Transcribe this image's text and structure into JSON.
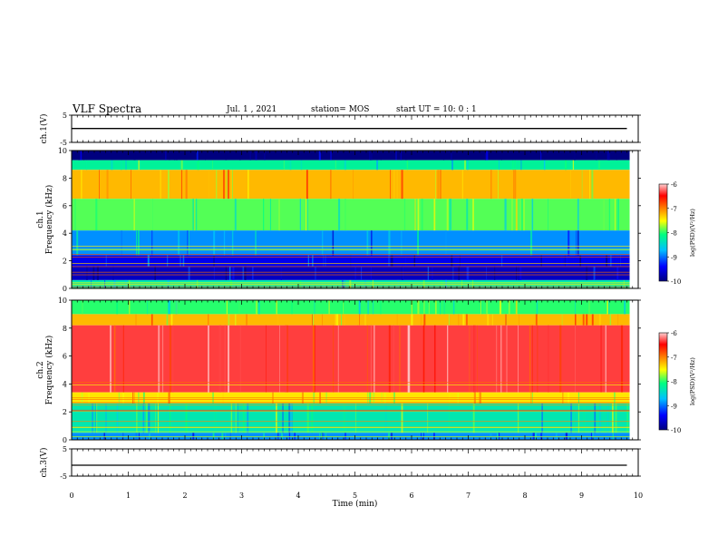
{
  "header": {
    "title": "VLF Spectra",
    "date": "Jul.  1  , 2021",
    "station": "station= MOS",
    "start": "start  UT  =   10: 0  : 1"
  },
  "colors": {
    "ch1_background": "#f0e820",
    "ch2_background": "#ff3030",
    "colormap": [
      "#00007f",
      "#0000ff",
      "#00c0ff",
      "#00ff80",
      "#ffff00",
      "#ff8000",
      "#ff0000",
      "#ffd0d0"
    ]
  },
  "chart_data": [
    {
      "type": "line",
      "ylabel": "ch.1(V)",
      "ylim": [
        -5,
        5
      ],
      "yticks": [
        "5",
        "-5"
      ],
      "series": [
        {
          "x": [
            0,
            9.8
          ],
          "y": [
            0.1,
            0.1
          ]
        }
      ]
    },
    {
      "type": "heatmap",
      "ylabel_top": "ch.1",
      "ylabel": "Frequency (kHz)",
      "ylim": [
        0,
        10
      ],
      "yticks": [
        "0",
        "2",
        "4",
        "6",
        "8",
        "10"
      ],
      "xlim": [
        0,
        10
      ],
      "colorbar": {
        "label": "log(PSD)(V²/Hz)",
        "ticks": [
          "-6",
          "-7",
          "-8",
          "-9",
          "-10"
        ],
        "range": [
          -10,
          -6
        ]
      },
      "bands": [
        {
          "f0": 9.3,
          "f1": 10,
          "level": -10
        },
        {
          "f0": 8.6,
          "f1": 9.3,
          "level": -8.4
        },
        {
          "f0": 6.5,
          "f1": 8.6,
          "level": -7.4
        },
        {
          "f0": 4.2,
          "f1": 6.5,
          "level": -8.1
        },
        {
          "f0": 2.4,
          "f1": 4.2,
          "level": -9.0
        },
        {
          "f0": 1.6,
          "f1": 2.4,
          "level": -9.5
        },
        {
          "f0": 0.6,
          "f1": 1.6,
          "level": -9.7
        },
        {
          "f0": 0,
          "f1": 0.6,
          "level": -8.5
        }
      ]
    },
    {
      "type": "heatmap",
      "ylabel_top": "ch.2",
      "ylabel": "Frequency (kHz)",
      "ylim": [
        0,
        10
      ],
      "yticks": [
        "0",
        "2",
        "4",
        "6",
        "8",
        "10"
      ],
      "xlim": [
        0,
        10
      ],
      "colorbar": {
        "label": "log(PSD)(V²/Hz)",
        "ticks": [
          "-6",
          "-7",
          "-8",
          "-9",
          "-10"
        ],
        "range": [
          -10,
          -6
        ]
      },
      "bands": [
        {
          "f0": 9.0,
          "f1": 10,
          "level": -8.2
        },
        {
          "f0": 8.2,
          "f1": 9.0,
          "level": -7.4
        },
        {
          "f0": 3.4,
          "f1": 8.2,
          "level": -6.4
        },
        {
          "f0": 2.6,
          "f1": 3.4,
          "level": -7.6
        },
        {
          "f0": 0.5,
          "f1": 2.6,
          "level": -8.5
        },
        {
          "f0": 0,
          "f1": 0.5,
          "level": -9.0
        }
      ]
    },
    {
      "type": "line",
      "ylabel": "ch.3(V)",
      "ylim": [
        -5,
        5
      ],
      "yticks": [
        "5",
        "-5"
      ],
      "xlabel": "Time  (min)",
      "xticks": [
        "0",
        "1",
        "2",
        "3",
        "4",
        "5",
        "6",
        "7",
        "8",
        "9",
        "10"
      ],
      "series": [
        {
          "x": [
            0,
            9.8
          ],
          "y": [
            -1.0,
            -1.0
          ]
        }
      ]
    }
  ]
}
